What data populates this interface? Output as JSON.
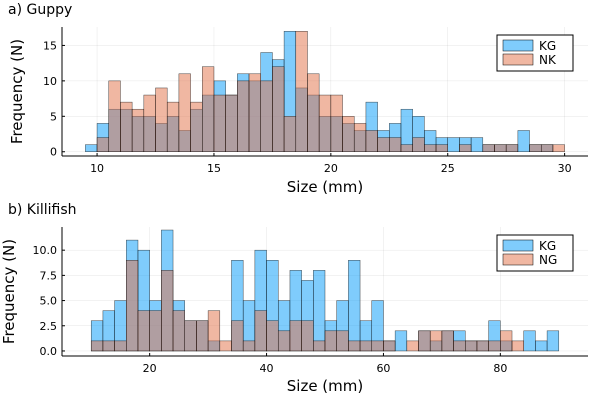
{
  "chart_data": [
    {
      "type": "histogram",
      "title": "a) Guppy",
      "xlabel": "Size (mm)",
      "ylabel": "Frequency (N)",
      "xlim": [
        8.5,
        31
      ],
      "ylim": [
        -0.6,
        17.6
      ],
      "x_ticks": [
        10,
        15,
        20,
        25,
        30
      ],
      "y_ticks": [
        0,
        5,
        10,
        15
      ],
      "grid": true,
      "legend_position": "top-right",
      "bin_width": 0.5,
      "series": [
        {
          "name": "KG",
          "color": "#009AFA",
          "bins": [
            {
              "x": 9.5,
              "y": 1
            },
            {
              "x": 10.0,
              "y": 4
            },
            {
              "x": 10.5,
              "y": 6
            },
            {
              "x": 11.0,
              "y": 6
            },
            {
              "x": 11.5,
              "y": 5
            },
            {
              "x": 12.0,
              "y": 5
            },
            {
              "x": 12.5,
              "y": 4
            },
            {
              "x": 13.0,
              "y": 5
            },
            {
              "x": 13.5,
              "y": 3
            },
            {
              "x": 14.0,
              "y": 6
            },
            {
              "x": 14.5,
              "y": 8
            },
            {
              "x": 15.0,
              "y": 10
            },
            {
              "x": 15.5,
              "y": 8
            },
            {
              "x": 16.0,
              "y": 11
            },
            {
              "x": 16.5,
              "y": 10
            },
            {
              "x": 17.0,
              "y": 14
            },
            {
              "x": 17.5,
              "y": 13
            },
            {
              "x": 18.0,
              "y": 17
            },
            {
              "x": 18.5,
              "y": 9
            },
            {
              "x": 19.0,
              "y": 8
            },
            {
              "x": 19.5,
              "y": 5
            },
            {
              "x": 20.0,
              "y": 5
            },
            {
              "x": 20.5,
              "y": 4
            },
            {
              "x": 21.0,
              "y": 3
            },
            {
              "x": 21.5,
              "y": 7
            },
            {
              "x": 22.0,
              "y": 3
            },
            {
              "x": 22.5,
              "y": 4
            },
            {
              "x": 23.0,
              "y": 6
            },
            {
              "x": 23.5,
              "y": 5
            },
            {
              "x": 24.0,
              "y": 3
            },
            {
              "x": 24.5,
              "y": 2
            },
            {
              "x": 25.0,
              "y": 2
            },
            {
              "x": 25.5,
              "y": 2
            },
            {
              "x": 26.0,
              "y": 2
            },
            {
              "x": 26.5,
              "y": 1
            },
            {
              "x": 27.0,
              "y": 1
            },
            {
              "x": 27.5,
              "y": 1
            },
            {
              "x": 28.0,
              "y": 3
            },
            {
              "x": 28.5,
              "y": 1
            },
            {
              "x": 29.0,
              "y": 1
            },
            {
              "x": 29.5,
              "y": 0
            }
          ]
        },
        {
          "name": "NK",
          "color": "#E26F46",
          "bins": [
            {
              "x": 9.5,
              "y": 0
            },
            {
              "x": 10.0,
              "y": 2
            },
            {
              "x": 10.5,
              "y": 10
            },
            {
              "x": 11.0,
              "y": 7
            },
            {
              "x": 11.5,
              "y": 6
            },
            {
              "x": 12.0,
              "y": 8
            },
            {
              "x": 12.5,
              "y": 9
            },
            {
              "x": 13.0,
              "y": 7
            },
            {
              "x": 13.5,
              "y": 11
            },
            {
              "x": 14.0,
              "y": 7
            },
            {
              "x": 14.5,
              "y": 12
            },
            {
              "x": 15.0,
              "y": 8
            },
            {
              "x": 15.5,
              "y": 8
            },
            {
              "x": 16.0,
              "y": 10
            },
            {
              "x": 16.5,
              "y": 11
            },
            {
              "x": 17.0,
              "y": 10
            },
            {
              "x": 17.5,
              "y": 12
            },
            {
              "x": 18.0,
              "y": 5
            },
            {
              "x": 18.5,
              "y": 17
            },
            {
              "x": 19.0,
              "y": 11
            },
            {
              "x": 19.5,
              "y": 8
            },
            {
              "x": 20.0,
              "y": 8
            },
            {
              "x": 20.5,
              "y": 5
            },
            {
              "x": 21.0,
              "y": 4
            },
            {
              "x": 21.5,
              "y": 3
            },
            {
              "x": 22.0,
              "y": 2
            },
            {
              "x": 22.5,
              "y": 2
            },
            {
              "x": 23.0,
              "y": 1
            },
            {
              "x": 23.5,
              "y": 2
            },
            {
              "x": 24.0,
              "y": 1
            },
            {
              "x": 24.5,
              "y": 1
            },
            {
              "x": 25.0,
              "y": 0
            },
            {
              "x": 25.5,
              "y": 1
            },
            {
              "x": 26.0,
              "y": 0
            },
            {
              "x": 26.5,
              "y": 1
            },
            {
              "x": 27.0,
              "y": 1
            },
            {
              "x": 27.5,
              "y": 1
            },
            {
              "x": 28.0,
              "y": 0
            },
            {
              "x": 28.5,
              "y": 1
            },
            {
              "x": 29.0,
              "y": 1
            },
            {
              "x": 29.5,
              "y": 1
            }
          ]
        }
      ]
    },
    {
      "type": "histogram",
      "title": "b) Killifish",
      "xlabel": "Size (mm)",
      "ylabel": "Frequency (N)",
      "xlim": [
        5,
        95
      ],
      "ylim": [
        -0.5,
        12.3
      ],
      "x_ticks": [
        20,
        40,
        60,
        80
      ],
      "y_ticks": [
        0.0,
        2.5,
        5.0,
        7.5,
        10.0
      ],
      "y_tick_labels": [
        "0.0",
        "2.5",
        "5.0",
        "7.5",
        "10.0"
      ],
      "grid": true,
      "legend_position": "top-right",
      "bin_width": 2,
      "series": [
        {
          "name": "KG",
          "color": "#009AFA",
          "bins": [
            {
              "x": 10,
              "y": 3
            },
            {
              "x": 12,
              "y": 4
            },
            {
              "x": 14,
              "y": 5
            },
            {
              "x": 16,
              "y": 11
            },
            {
              "x": 18,
              "y": 10
            },
            {
              "x": 20,
              "y": 5
            },
            {
              "x": 22,
              "y": 12
            },
            {
              "x": 24,
              "y": 5
            },
            {
              "x": 26,
              "y": 3
            },
            {
              "x": 28,
              "y": 3
            },
            {
              "x": 30,
              "y": 1
            },
            {
              "x": 32,
              "y": 0
            },
            {
              "x": 34,
              "y": 9
            },
            {
              "x": 36,
              "y": 5
            },
            {
              "x": 38,
              "y": 10
            },
            {
              "x": 40,
              "y": 9
            },
            {
              "x": 42,
              "y": 5
            },
            {
              "x": 44,
              "y": 8
            },
            {
              "x": 46,
              "y": 7
            },
            {
              "x": 48,
              "y": 8
            },
            {
              "x": 50,
              "y": 3
            },
            {
              "x": 52,
              "y": 5
            },
            {
              "x": 54,
              "y": 9
            },
            {
              "x": 56,
              "y": 3
            },
            {
              "x": 58,
              "y": 5
            },
            {
              "x": 60,
              "y": 1
            },
            {
              "x": 62,
              "y": 2
            },
            {
              "x": 64,
              "y": 0
            },
            {
              "x": 66,
              "y": 2
            },
            {
              "x": 68,
              "y": 1
            },
            {
              "x": 70,
              "y": 2
            },
            {
              "x": 72,
              "y": 2
            },
            {
              "x": 74,
              "y": 1
            },
            {
              "x": 76,
              "y": 1
            },
            {
              "x": 78,
              "y": 3
            },
            {
              "x": 80,
              "y": 1
            },
            {
              "x": 82,
              "y": 0
            },
            {
              "x": 84,
              "y": 2
            },
            {
              "x": 86,
              "y": 1
            },
            {
              "x": 88,
              "y": 2
            }
          ]
        },
        {
          "name": "NG",
          "color": "#E26F46",
          "bins": [
            {
              "x": 10,
              "y": 1
            },
            {
              "x": 12,
              "y": 1
            },
            {
              "x": 14,
              "y": 1
            },
            {
              "x": 16,
              "y": 9
            },
            {
              "x": 18,
              "y": 4
            },
            {
              "x": 20,
              "y": 4
            },
            {
              "x": 22,
              "y": 8
            },
            {
              "x": 24,
              "y": 4
            },
            {
              "x": 26,
              "y": 3
            },
            {
              "x": 28,
              "y": 3
            },
            {
              "x": 30,
              "y": 4
            },
            {
              "x": 32,
              "y": 1
            },
            {
              "x": 34,
              "y": 3
            },
            {
              "x": 36,
              "y": 1
            },
            {
              "x": 38,
              "y": 4
            },
            {
              "x": 40,
              "y": 3
            },
            {
              "x": 42,
              "y": 2
            },
            {
              "x": 44,
              "y": 3
            },
            {
              "x": 46,
              "y": 3
            },
            {
              "x": 48,
              "y": 1
            },
            {
              "x": 50,
              "y": 2
            },
            {
              "x": 52,
              "y": 2
            },
            {
              "x": 54,
              "y": 1
            },
            {
              "x": 56,
              "y": 1
            },
            {
              "x": 58,
              "y": 1
            },
            {
              "x": 60,
              "y": 1
            },
            {
              "x": 62,
              "y": 0
            },
            {
              "x": 64,
              "y": 1
            },
            {
              "x": 66,
              "y": 2
            },
            {
              "x": 68,
              "y": 2
            },
            {
              "x": 70,
              "y": 2
            },
            {
              "x": 72,
              "y": 1
            },
            {
              "x": 74,
              "y": 1
            },
            {
              "x": 76,
              "y": 1
            },
            {
              "x": 78,
              "y": 1
            },
            {
              "x": 80,
              "y": 2
            },
            {
              "x": 82,
              "y": 1
            },
            {
              "x": 84,
              "y": 0
            },
            {
              "x": 86,
              "y": 0
            },
            {
              "x": 88,
              "y": 0
            }
          ]
        }
      ]
    }
  ]
}
